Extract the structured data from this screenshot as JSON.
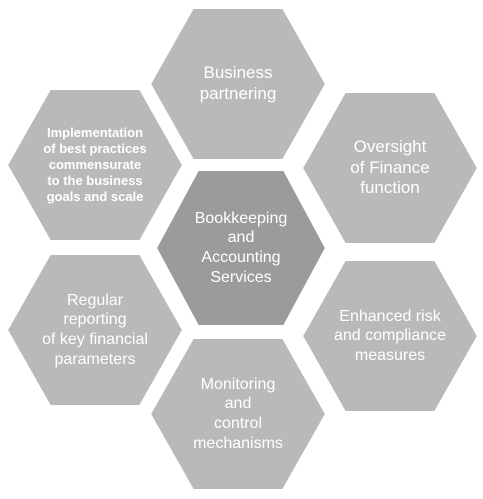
{
  "colors": {
    "outer_hex": "#b9b9b9",
    "center_hex": "#9b9b9b",
    "text": "#ffffff",
    "background": "#ffffff"
  },
  "center": {
    "label_lines": [
      "Bookkeeping",
      "and",
      "Accounting",
      "Services"
    ]
  },
  "outer": [
    {
      "label_lines": [
        "Business",
        "partnering"
      ]
    },
    {
      "label_lines": [
        "Oversight",
        "of Finance",
        "function"
      ]
    },
    {
      "label_lines": [
        "Enhanced risk",
        "and compliance",
        "measures"
      ]
    },
    {
      "label_lines": [
        "Monitoring",
        "and",
        "control",
        "mechanisms"
      ]
    },
    {
      "label_lines": [
        "Regular",
        "reporting",
        "of key financial",
        "parameters"
      ]
    },
    {
      "label_lines": [
        "Implementation",
        "of best practices",
        "commensurate",
        "to the business",
        "goals and scale"
      ]
    }
  ]
}
